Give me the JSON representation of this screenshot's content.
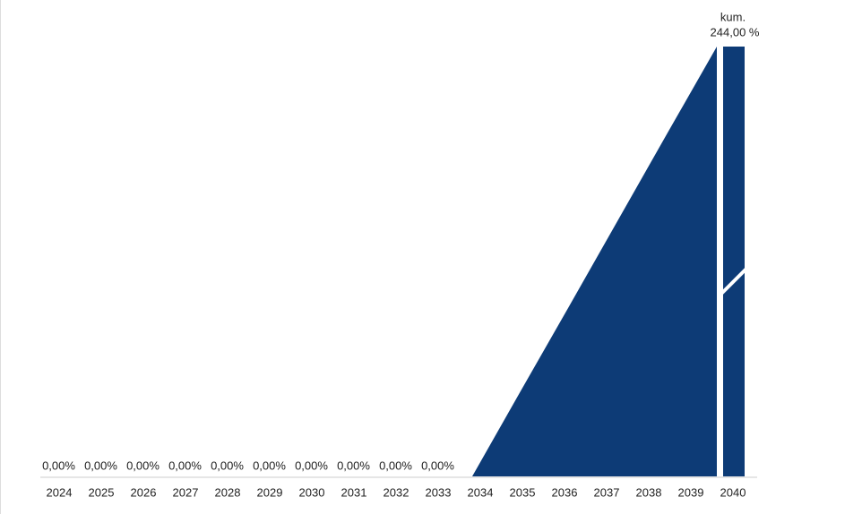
{
  "chart_data": {
    "type": "area",
    "categories": [
      "2024",
      "2025",
      "2026",
      "2027",
      "2028",
      "2029",
      "2030",
      "2031",
      "2032",
      "2033",
      "2034",
      "2035",
      "2036",
      "2037",
      "2038",
      "2039",
      "2040"
    ],
    "values": [
      0,
      0,
      0,
      0,
      0,
      0,
      0,
      0,
      0,
      0,
      0,
      16.3,
      32.5,
      48.8,
      65.1,
      81.3,
      null
    ],
    "value_labels": [
      "0,00%",
      "0,00%",
      "0,00%",
      "0,00%",
      "0,00%",
      "0,00%",
      "0,00%",
      "0,00%",
      "0,00%",
      "0,00%",
      null,
      null,
      null,
      null,
      null,
      null,
      null
    ],
    "color": "#0d3b76",
    "cumulative": {
      "annotation": "kum.",
      "value": 244,
      "value_label": "244,00 %"
    }
  }
}
